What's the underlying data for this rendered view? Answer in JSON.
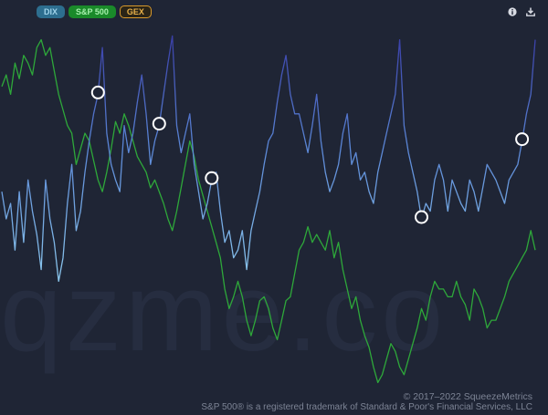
{
  "legend": [
    {
      "key": "dix",
      "label": "DIX",
      "color": "#2d6e8f"
    },
    {
      "key": "spx",
      "label": "S&P 500",
      "color": "#1a8a2a"
    },
    {
      "key": "gex",
      "label": "GEX",
      "color": "#d99a2b"
    }
  ],
  "tools": {
    "info_icon": "info-icon",
    "download_icon": "download-icon"
  },
  "watermark": "qzme.co",
  "footer": {
    "copyright": "© 2017–2022 SqueezeMetrics",
    "trademark": "S&P 500® is a registered trademark of Standard & Poor's Financial Services, LLC"
  },
  "chart_data": {
    "type": "line",
    "title": "",
    "xlabel": "",
    "ylabel": "",
    "grid": false,
    "legend_position": "top-left",
    "ylim": [
      0,
      100
    ],
    "series": [
      {
        "name": "DIX",
        "color": "#6f95d8",
        "values": [
          55,
          48,
          52,
          40,
          55,
          42,
          58,
          50,
          44,
          35,
          58,
          48,
          42,
          32,
          38,
          52,
          62,
          45,
          50,
          60,
          68,
          75,
          80,
          92,
          70,
          62,
          58,
          55,
          72,
          65,
          70,
          78,
          85,
          75,
          62,
          68,
          72,
          80,
          88,
          95,
          72,
          65,
          70,
          75,
          62,
          55,
          48,
          52,
          58,
          60,
          50,
          42,
          45,
          38,
          40,
          45,
          35,
          45,
          50,
          55,
          62,
          68,
          70,
          78,
          85,
          90,
          80,
          75,
          75,
          70,
          65,
          72,
          80,
          68,
          60,
          55,
          58,
          62,
          70,
          75,
          62,
          65,
          58,
          60,
          55,
          52,
          60,
          65,
          70,
          75,
          80,
          94,
          72,
          65,
          60,
          55,
          48,
          52,
          50,
          58,
          62,
          58,
          50,
          58,
          55,
          52,
          50,
          58,
          55,
          50,
          56,
          62,
          60,
          58,
          55,
          52,
          58,
          60,
          62,
          68,
          75,
          80,
          94
        ],
        "markers": [
          22,
          36,
          48,
          96,
          119
        ]
      },
      {
        "name": "S&P 500",
        "color": "#2ea83a",
        "values": [
          82,
          85,
          80,
          88,
          84,
          90,
          88,
          85,
          92,
          94,
          90,
          92,
          86,
          80,
          76,
          72,
          70,
          62,
          66,
          70,
          68,
          63,
          58,
          55,
          60,
          66,
          73,
          70,
          75,
          72,
          68,
          64,
          62,
          60,
          56,
          58,
          55,
          52,
          48,
          45,
          50,
          56,
          62,
          68,
          64,
          58,
          54,
          50,
          46,
          42,
          38,
          30,
          25,
          28,
          32,
          28,
          22,
          18,
          22,
          27,
          28,
          25,
          20,
          17,
          22,
          27,
          28,
          34,
          40,
          42,
          46,
          42,
          44,
          42,
          40,
          45,
          38,
          42,
          35,
          30,
          25,
          28,
          22,
          18,
          15,
          10,
          6,
          8,
          12,
          16,
          14,
          10,
          8,
          12,
          16,
          20,
          25,
          22,
          28,
          32,
          30,
          30,
          28,
          28,
          32,
          28,
          26,
          22,
          30,
          28,
          25,
          20,
          22,
          22,
          25,
          28,
          32,
          34,
          36,
          38,
          40,
          45,
          40
        ]
      }
    ]
  }
}
